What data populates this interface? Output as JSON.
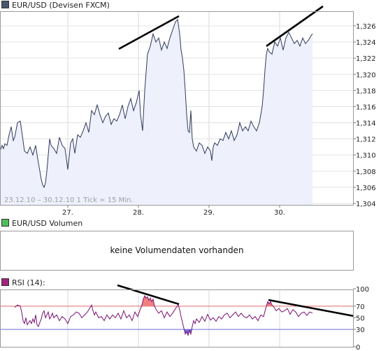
{
  "chart_data": [
    {
      "type": "area",
      "title": "EUR/USD (Devisen FXCM)",
      "legend_color": "#4a5570",
      "subtitle": "23.12.10 – 30.12.10   1 Tick = 15 Min.",
      "x_tick_labels": [
        "27.",
        "28.",
        "29.",
        "30."
      ],
      "y_ticks": [
        "1,326",
        "1,324",
        "1,322",
        "1,320",
        "1,318",
        "1,316",
        "1,314",
        "1,312",
        "1,310",
        "1,308",
        "1,306",
        "1,304"
      ],
      "ylim": [
        1.304,
        1.327
      ],
      "line_color": "#2e3a5c",
      "fill_color": "#eef0fb",
      "grid": true,
      "series": [
        {
          "x": [
            0,
            2,
            4,
            6,
            9,
            12,
            15,
            18,
            20,
            24,
            28,
            30,
            34,
            38,
            42,
            46,
            50,
            53,
            56,
            58,
            60,
            62,
            64,
            66,
            68,
            70,
            72,
            76,
            80,
            84,
            88,
            92,
            96,
            98,
            100,
            103,
            106,
            110,
            114,
            118,
            122,
            126,
            130,
            134,
            138,
            142,
            146,
            150,
            154,
            158,
            162,
            166,
            170,
            174,
            178,
            182,
            186,
            190,
            194,
            198,
            200,
            203,
            206,
            210,
            214,
            218,
            222,
            226,
            230,
            234,
            238,
            242,
            246,
            250,
            253,
            256,
            258,
            260,
            262,
            264,
            266,
            268,
            270,
            272,
            274,
            276,
            280,
            284,
            288,
            292,
            296,
            300,
            302,
            304,
            306,
            310,
            314,
            318,
            322,
            326,
            330,
            334,
            338,
            342,
            346,
            350,
            354,
            358,
            362,
            366,
            370,
            374,
            376,
            378,
            380,
            382,
            384,
            388,
            392,
            396,
            400,
            404,
            408,
            412,
            416,
            420,
            424,
            428,
            432,
            436,
            440,
            444,
            446
          ],
          "y": [
            1.3107,
            1.3112,
            1.3108,
            1.3114,
            1.3112,
            1.3125,
            1.3135,
            1.3118,
            1.3122,
            1.314,
            1.3142,
            1.313,
            1.3105,
            1.3102,
            1.311,
            1.31,
            1.3112,
            1.3095,
            1.308,
            1.307,
            1.3063,
            1.306,
            1.3065,
            1.308,
            1.31,
            1.312,
            1.3112,
            1.3108,
            1.3102,
            1.3122,
            1.3112,
            1.3108,
            1.3082,
            1.3098,
            1.3115,
            1.312,
            1.3102,
            1.3125,
            1.3122,
            1.313,
            1.314,
            1.3128,
            1.3155,
            1.315,
            1.3162,
            1.315,
            1.314,
            1.3148,
            1.3152,
            1.3138,
            1.3145,
            1.3142,
            1.315,
            1.3162,
            1.3145,
            1.316,
            1.317,
            1.3155,
            1.3165,
            1.318,
            1.315,
            1.313,
            1.318,
            1.3225,
            1.3235,
            1.325,
            1.324,
            1.3245,
            1.323,
            1.324,
            1.3232,
            1.3245,
            1.3255,
            1.3265,
            1.3268,
            1.325,
            1.323,
            1.322,
            1.3205,
            1.318,
            1.315,
            1.313,
            1.3128,
            1.3155,
            1.312,
            1.311,
            1.3105,
            1.3115,
            1.3112,
            1.3102,
            1.311,
            1.3105,
            1.3093,
            1.311,
            1.3115,
            1.3112,
            1.312,
            1.3118,
            1.3128,
            1.312,
            1.313,
            1.3118,
            1.3125,
            1.314,
            1.313,
            1.3135,
            1.313,
            1.3142,
            1.3135,
            1.313,
            1.314,
            1.316,
            1.318,
            1.3205,
            1.3225,
            1.3232,
            1.3228,
            1.3225,
            1.324,
            1.3235,
            1.3245,
            1.323,
            1.3245,
            1.3252,
            1.3245,
            1.3238,
            1.3242,
            1.3235,
            1.3245,
            1.3238,
            1.3242,
            1.3248,
            1.325
          ]
        }
      ]
    },
    {
      "type": "line",
      "title": "EUR/USD Volumen",
      "legend_color": "#4dbf57",
      "message": "keine Volumendaten vorhanden"
    },
    {
      "type": "line",
      "title": "RSI (14):",
      "legend_color": "#a0237c",
      "y_ticks": [
        "100",
        "70",
        "50",
        "30",
        "0"
      ],
      "ylim": [
        0,
        100
      ],
      "levels": [
        {
          "value": 70,
          "color": "#e06a6a"
        },
        {
          "value": 30,
          "color": "#6a6ad8"
        }
      ],
      "line_color": "#7a1070",
      "overbought_fill": "#f08080",
      "oversold_fill": "#7070e0",
      "series": [
        {
          "x": [
            20,
            24,
            28,
            30,
            32,
            34,
            36,
            38,
            40,
            42,
            44,
            46,
            48,
            50,
            52,
            54,
            56,
            58,
            60,
            62,
            64,
            66,
            68,
            70,
            72,
            74,
            76,
            80,
            84,
            88,
            92,
            96,
            100,
            104,
            108,
            112,
            116,
            120,
            124,
            128,
            130,
            132,
            134,
            136,
            140,
            144,
            148,
            152,
            156,
            160,
            164,
            168,
            172,
            176,
            180,
            184,
            188,
            192,
            196,
            200,
            202,
            204,
            206,
            208,
            210,
            212,
            214,
            216,
            218,
            220,
            222,
            226,
            230,
            234,
            238,
            242,
            246,
            250,
            254,
            256,
            258,
            260,
            262,
            264,
            266,
            268,
            270,
            272,
            274,
            276,
            278,
            280,
            284,
            288,
            292,
            296,
            300,
            304,
            308,
            312,
            316,
            320,
            324,
            328,
            332,
            336,
            340,
            344,
            348,
            352,
            356,
            360,
            364,
            368,
            372,
            376,
            380,
            382,
            384,
            386,
            388,
            390,
            394,
            398,
            402,
            406,
            410,
            414,
            418,
            422,
            426,
            430,
            434,
            438,
            442,
            446
          ],
          "y": [
            68,
            72,
            70,
            60,
            45,
            40,
            50,
            38,
            42,
            45,
            40,
            48,
            42,
            55,
            38,
            35,
            42,
            48,
            58,
            62,
            50,
            55,
            60,
            48,
            52,
            58,
            50,
            55,
            45,
            52,
            48,
            40,
            52,
            55,
            60,
            58,
            50,
            55,
            60,
            68,
            72,
            62,
            55,
            60,
            50,
            52,
            45,
            55,
            48,
            55,
            50,
            58,
            48,
            62,
            50,
            55,
            45,
            60,
            52,
            66,
            72,
            82,
            88,
            84,
            86,
            80,
            84,
            78,
            82,
            70,
            65,
            58,
            62,
            50,
            60,
            52,
            58,
            66,
            72,
            64,
            52,
            42,
            32,
            22,
            26,
            20,
            28,
            22,
            35,
            45,
            40,
            48,
            42,
            52,
            44,
            56,
            46,
            50,
            44,
            52,
            48,
            55,
            58,
            50,
            55,
            60,
            52,
            58,
            52,
            50,
            55,
            48,
            52,
            45,
            55,
            52,
            70,
            78,
            74,
            78,
            72,
            70,
            62,
            66,
            60,
            62,
            66,
            56,
            64,
            60,
            52,
            58,
            60,
            54,
            60,
            58
          ]
        }
      ]
    }
  ]
}
